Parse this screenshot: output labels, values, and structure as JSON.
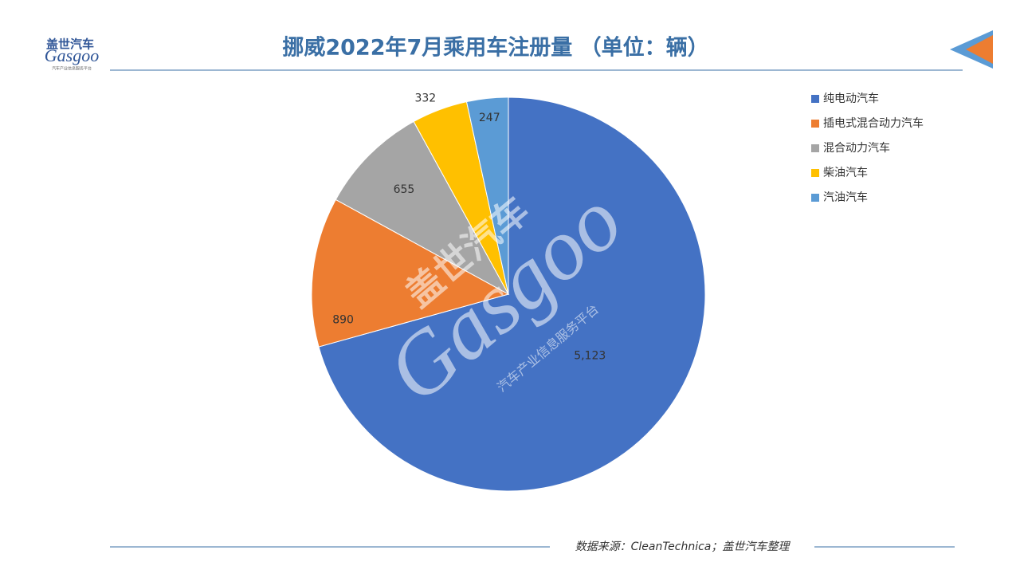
{
  "logo": {
    "name": "盖世汽车",
    "brand": "Gasgoo",
    "slogan": "汽车产业信息服务平台"
  },
  "chart_data": {
    "type": "pie",
    "title": "挪威2022年7月乘用车注册量 （单位：辆）",
    "categories": [
      "纯电动汽车",
      "插电式混合动力汽车",
      "混合动力汽车",
      "柴油汽车",
      "汽油汽车"
    ],
    "values": [
      5123,
      890,
      655,
      332,
      247
    ],
    "value_labels": [
      "5,123",
      "890",
      "655",
      "332",
      "247"
    ],
    "colors": [
      "#4472c4",
      "#ed7d31",
      "#a5a5a5",
      "#ffc000",
      "#5b9bd5"
    ],
    "legend": "right"
  },
  "source": "数据来源：CleanTechnica；盖世汽车整理"
}
